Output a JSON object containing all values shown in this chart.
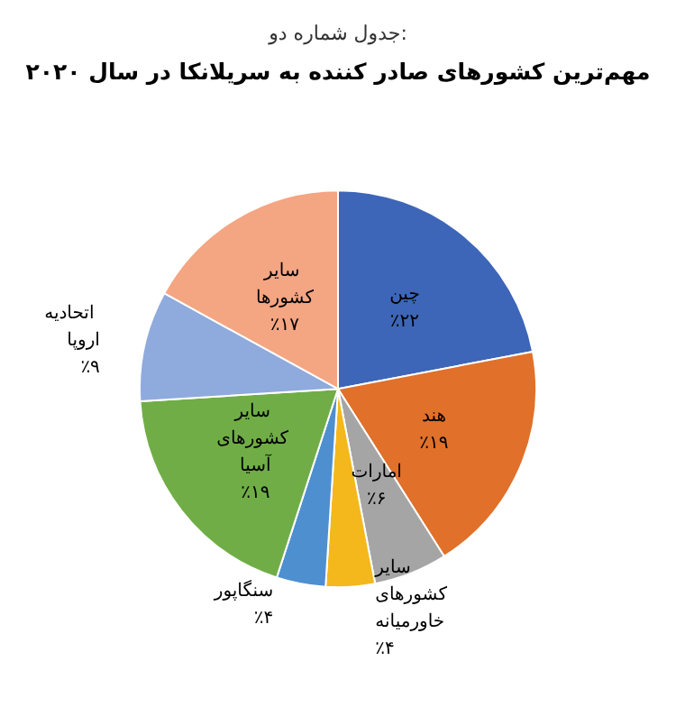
{
  "chart_data": {
    "type": "pie",
    "subtitle": "جدول شماره دو:",
    "title": "مهم‌ترین کشورهای صادر کننده به سریلانکا در سال ۲۰۲۰",
    "categories": [
      "چین",
      "هند",
      "امارات",
      "سایر کشورهای خاورمیانه",
      "سنگاپور",
      "سایر کشورهای آسیا",
      "اتحادیه اروپا",
      "سایر کشورها"
    ],
    "values": [
      22,
      19,
      6,
      4,
      4,
      19,
      9,
      17
    ],
    "value_labels": [
      "٪۲۲",
      "٪۱۹",
      "٪۶",
      "٪۴",
      "٪۴",
      "٪۱۹",
      "٪۹",
      "٪۱۷"
    ],
    "colors": [
      "#3d66b8",
      "#e0702a",
      "#a5a5a5",
      "#f4b81c",
      "#4e8fd0",
      "#70ad47",
      "#8faadc",
      "#f4a582"
    ],
    "legend": false
  }
}
